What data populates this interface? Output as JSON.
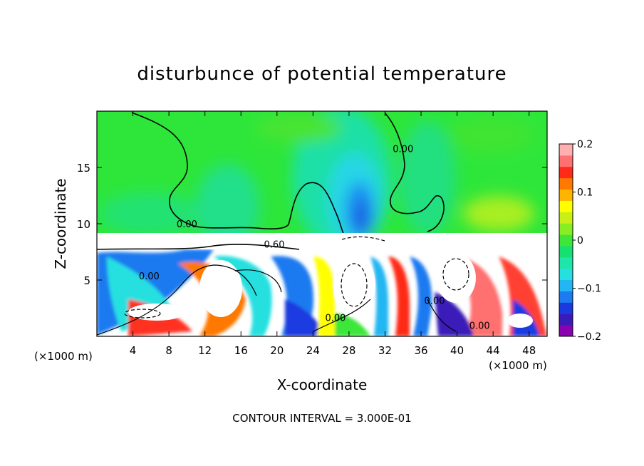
{
  "chart_data": {
    "type": "heatmap",
    "title": "disturbunce of potential temperature",
    "xlabel": "X-coordinate",
    "ylabel": "Z-coordinate",
    "x_unit_left": "(×1000 m)",
    "x_unit_right": "(×1000 m)",
    "xlim": [
      0,
      50
    ],
    "ylim": [
      0,
      20
    ],
    "x_ticks": [
      4,
      8,
      12,
      16,
      20,
      24,
      28,
      32,
      36,
      40,
      44,
      48
    ],
    "y_ticks": [
      5,
      10,
      15
    ],
    "footer": "CONTOUR INTERVAL = 3.000E-01",
    "colorbar": {
      "min": -0.2,
      "max": 0.2,
      "ticks": [
        {
          "value": 0.2,
          "label": "0.2"
        },
        {
          "value": 0.1,
          "label": "0.1"
        },
        {
          "value": 0,
          "label": "0"
        },
        {
          "value": -0.1,
          "label": "-0.1"
        },
        {
          "value": -0.2,
          "label": "-0.2"
        }
      ],
      "colors": [
        "#8b00b0",
        "#3a1ab8",
        "#1a3ae0",
        "#1e7af0",
        "#22b6f2",
        "#26e0e0",
        "#1ee6a8",
        "#18e070",
        "#3ee63a",
        "#88ee22",
        "#c8f016",
        "#ffff00",
        "#ffb400",
        "#ff7800",
        "#ff2a18",
        "#ff7070",
        "#ffb0b0"
      ]
    },
    "contour_labels": [
      {
        "text": "0.00",
        "x": 10.0,
        "y": 9.8
      },
      {
        "text": "0.00",
        "x": 34.0,
        "y": 16.5
      },
      {
        "text": "0.60",
        "x": 19.7,
        "y": 8.0
      },
      {
        "text": "0.00",
        "x": 5.8,
        "y": 5.2
      },
      {
        "text": "0.00",
        "x": 26.5,
        "y": 1.5
      },
      {
        "text": "0.00",
        "x": 37.5,
        "y": 3.0
      },
      {
        "text": "0.00",
        "x": 42.5,
        "y": 0.8
      }
    ],
    "fields": {
      "upper_layer": "smooth field near 0 with a negative (blue) column centred at x≈30 reaching about -0.15 and a slightly positive (yellow-green) region at x≈40-48, z≈10-12",
      "inversion_layer": "white band (values beyond colour range) at z≈8-9 with dense contours",
      "lower_layer": "strong mixed positive/negative eddies from z=0 to z≈8"
    }
  }
}
